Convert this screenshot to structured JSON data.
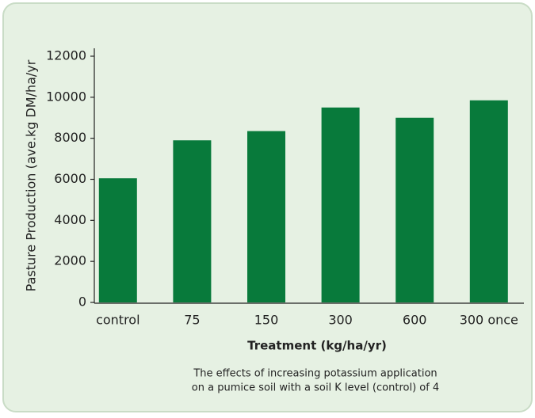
{
  "chart_data": {
    "type": "bar",
    "y_label": "Pasture Production (ave.kg DM/ha/yr",
    "x_label": "Treatment (kg/ha/yr)",
    "caption": [
      "The effects of increasing potassium application",
      "on a pumice soil with a soil K level (control) of 4"
    ],
    "categories": [
      "control",
      "75",
      "150",
      "300",
      "600",
      "300 once"
    ],
    "values": [
      6050,
      7900,
      8350,
      9500,
      9000,
      9850
    ],
    "color": "#087a3b",
    "ylim": [
      0,
      12000
    ],
    "yticks": [
      0,
      2000,
      4000,
      6000,
      8000,
      10000,
      12000
    ]
  }
}
